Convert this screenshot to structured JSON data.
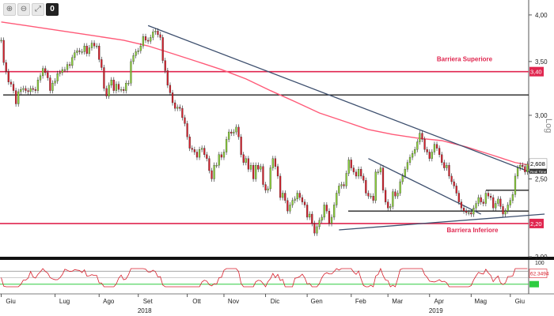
{
  "toolbar": {
    "buttons": [
      {
        "glyph": "⊕",
        "icon": "zoom-in-icon"
      },
      {
        "glyph": "⊖",
        "icon": "zoom-out-icon"
      },
      {
        "glyph": "⤢",
        "icon": "fullscreen-icon"
      },
      {
        "glyph": "0",
        "icon": "counter-badge"
      }
    ]
  },
  "log_label": "Log",
  "colors": {
    "up": "#8cd13a",
    "down": "#d8202c",
    "wick": "#222222",
    "sma": "#ff5a78",
    "barrier": "#e0264f",
    "level": "#222222",
    "trend": "#3d4f6e",
    "rsi_line": "#d8202c",
    "rsi_green": "#2ecc40",
    "rsi_gray": "#999999",
    "tag_bg": "#e0264f",
    "tag_text": "#ffffff"
  },
  "chart_data": {
    "type": "candlestick",
    "y_axis": {
      "ylim": [
        2.0,
        4.1
      ],
      "scale": "log",
      "tick_labels": [
        "4,00",
        "3,50",
        "3,00",
        "2,50",
        "2,00"
      ],
      "tick_values": [
        4.0,
        3.5,
        3.0,
        2.5,
        2.0
      ]
    },
    "x_axis": {
      "months": [
        "Giu",
        "Lug",
        "Ago",
        "Set",
        "Ott",
        "Nov",
        "Dic",
        "Gen",
        "Feb",
        "Mar",
        "Apr",
        "Mag",
        "Giu"
      ],
      "years": [
        "2018",
        "2019"
      ]
    },
    "last_price": 2.608,
    "last_price_label": "2,608",
    "last_price_tag": "Real Time",
    "barriers": [
      {
        "name": "Barriera Superiore",
        "value": 3.4,
        "label": "3,40"
      },
      {
        "name": "Barriera Inferiore",
        "value": 2.2,
        "label": "2,20"
      }
    ],
    "horizontal_levels": [
      3.18,
      2.28,
      2.42
    ],
    "sma_points": [
      [
        0,
        3.92
      ],
      [
        10,
        3.88
      ],
      [
        20,
        3.84
      ],
      [
        30,
        3.8
      ],
      [
        40,
        3.76
      ],
      [
        50,
        3.72
      ],
      [
        60,
        3.66
      ],
      [
        70,
        3.58
      ],
      [
        80,
        3.5
      ],
      [
        90,
        3.42
      ],
      [
        100,
        3.33
      ],
      [
        110,
        3.22
      ],
      [
        120,
        3.12
      ],
      [
        130,
        3.02
      ],
      [
        140,
        2.95
      ],
      [
        150,
        2.88
      ],
      [
        160,
        2.84
      ],
      [
        170,
        2.81
      ],
      [
        180,
        2.79
      ],
      [
        190,
        2.74
      ],
      [
        200,
        2.68
      ],
      [
        210,
        2.62
      ],
      [
        222,
        2.58
      ]
    ],
    "trendlines": [
      {
        "from": [
          60,
          3.88
        ],
        "to": [
          216,
          2.55
        ]
      },
      {
        "from": [
          138,
          2.16
        ],
        "to": [
          222,
          2.26
        ]
      },
      {
        "from": [
          150,
          2.65
        ],
        "to": [
          196,
          2.26
        ]
      }
    ],
    "closes": [
      3.72,
      3.49,
      3.4,
      3.3,
      3.28,
      3.22,
      3.1,
      3.21,
      3.23,
      3.24,
      3.22,
      3.21,
      3.24,
      3.23,
      3.22,
      3.32,
      3.36,
      3.43,
      3.39,
      3.34,
      3.22,
      3.29,
      3.31,
      3.38,
      3.39,
      3.42,
      3.42,
      3.47,
      3.46,
      3.54,
      3.59,
      3.61,
      3.6,
      3.6,
      3.66,
      3.58,
      3.64,
      3.69,
      3.66,
      3.66,
      3.52,
      3.44,
      3.24,
      3.17,
      3.27,
      3.32,
      3.22,
      3.28,
      3.23,
      3.23,
      3.22,
      3.29,
      3.29,
      3.5,
      3.56,
      3.6,
      3.61,
      3.66,
      3.76,
      3.72,
      3.71,
      3.75,
      3.81,
      3.82,
      3.78,
      3.75,
      3.51,
      3.41,
      3.27,
      3.2,
      3.11,
      3.06,
      3.07,
      3.06,
      2.98,
      2.93,
      2.82,
      2.73,
      2.72,
      2.7,
      2.66,
      2.72,
      2.73,
      2.68,
      2.65,
      2.56,
      2.5,
      2.6,
      2.6,
      2.68,
      2.66,
      2.7,
      2.8,
      2.86,
      2.85,
      2.86,
      2.9,
      2.82,
      2.68,
      2.62,
      2.65,
      2.57,
      2.6,
      2.5,
      2.6,
      2.57,
      2.59,
      2.46,
      2.42,
      2.43,
      2.58,
      2.65,
      2.59,
      2.52,
      2.37,
      2.4,
      2.35,
      2.28,
      2.32,
      2.35,
      2.36,
      2.4,
      2.37,
      2.34,
      2.32,
      2.24,
      2.26,
      2.2,
      2.14,
      2.18,
      2.22,
      2.24,
      2.32,
      2.28,
      2.2,
      2.24,
      2.32,
      2.4,
      2.45,
      2.46,
      2.45,
      2.54,
      2.64,
      2.58,
      2.55,
      2.52,
      2.57,
      2.52,
      2.49,
      2.4,
      2.38,
      2.38,
      2.35,
      2.55,
      2.55,
      2.58,
      2.42,
      2.34,
      2.3,
      2.31,
      2.41,
      2.38,
      2.4,
      2.48,
      2.52,
      2.57,
      2.62,
      2.66,
      2.69,
      2.72,
      2.78,
      2.85,
      2.8,
      2.72,
      2.7,
      2.65,
      2.7,
      2.76,
      2.73,
      2.68,
      2.62,
      2.58,
      2.6,
      2.52,
      2.48,
      2.45,
      2.4,
      2.34,
      2.3,
      2.28,
      2.27,
      2.27,
      2.26,
      2.3,
      2.33,
      2.37,
      2.34,
      2.33,
      2.4,
      2.38,
      2.37,
      2.3,
      2.33,
      2.36,
      2.31,
      2.26,
      2.28,
      2.32,
      2.35,
      2.39,
      2.52,
      2.58,
      2.6,
      2.59,
      2.55,
      2.608
    ],
    "rsi": {
      "levels": [
        30,
        50,
        70
      ],
      "value_label": "62.3494",
      "top_label": "100"
    }
  }
}
